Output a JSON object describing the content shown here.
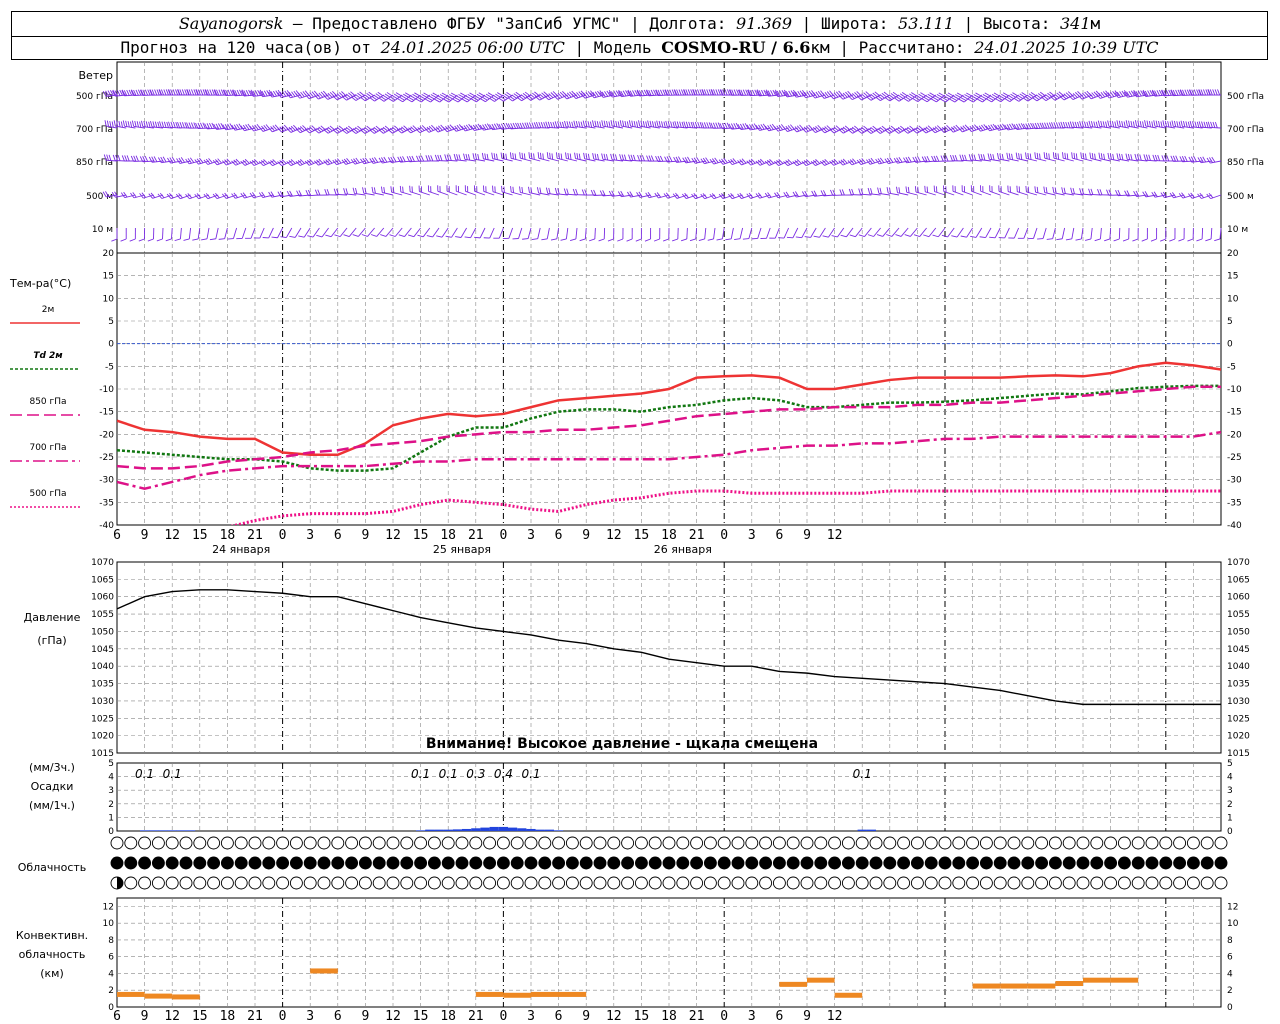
{
  "header": {
    "station": "Sayanogorsk",
    "provider": "Предоставлено ФГБУ \"ЗапСиб УГМС\"",
    "lon_label": "Долгота:",
    "lon": "91.369",
    "lat_label": "Широта:",
    "lat": "53.111",
    "alt_label": "Высота:",
    "alt": "341",
    "alt_unit": "м",
    "forecast_label": "Прогноз на 120 часа(ов) от",
    "forecast_start": "24.01.2025 06:00 UTC",
    "model_label": "Модель",
    "model": "COSMO-RU / 6.6",
    "model_unit": "км",
    "calc_label": "Рассчитано:",
    "calc_time": "24.01.2025 10:39 UTC"
  },
  "colors": {
    "t2m": "#ee3333",
    "td2m": "#117711",
    "t850": "#dd1188",
    "t700": "#dd1188",
    "t500": "#ee1188",
    "wind": "#7a2be2",
    "precip": "#2244dd",
    "conv": "#ee8822",
    "zero_line": "#3355cc",
    "grid": "#888888"
  },
  "x_axis": {
    "hours": [
      6,
      9,
      12,
      15,
      18,
      21,
      0,
      3,
      6,
      9,
      12,
      15,
      18,
      21,
      0,
      3,
      6,
      9,
      12,
      15,
      18,
      21,
      0,
      3,
      6,
      9,
      12
    ],
    "dates": [
      "24 января",
      "25 января",
      "26 января"
    ]
  },
  "wind_panel": {
    "title": "Ветер",
    "levels": [
      "500 гПа",
      "700 гПа",
      "850 гПа",
      "500 м",
      "10  м"
    ]
  },
  "temp_panel": {
    "title": "Тем-ра(°С)",
    "legend": [
      "2м",
      "Td  2м",
      "850 гПа",
      "700 гПа",
      "500 гПа"
    ],
    "yticks": [
      20,
      15,
      10,
      5,
      0,
      -5,
      -10,
      -15,
      -20,
      -25,
      -30,
      -35,
      -40
    ]
  },
  "pressure_panel": {
    "title": "Давление",
    "unit": "(гПа)",
    "warning": "Внимание! Высокое давление - щкала смещена",
    "yticks": [
      1070,
      1065,
      1060,
      1055,
      1050,
      1045,
      1040,
      1035,
      1030,
      1025,
      1020,
      1015
    ]
  },
  "precip_panel": {
    "unit3": "(мм/3ч.)",
    "title": "Осадки",
    "unit1": "(мм/1ч.)",
    "yticks": [
      5,
      4,
      3,
      2,
      1,
      0
    ],
    "labels": [
      {
        "hour": 9,
        "text": "0.1"
      },
      {
        "hour": 12,
        "text": "0.1"
      },
      {
        "hour": 39,
        "text": "0.1"
      },
      {
        "hour": 42,
        "text": "0.1"
      },
      {
        "hour": 45,
        "text": "0.3"
      },
      {
        "hour": 48,
        "text": "0.4"
      },
      {
        "hour": 51,
        "text": "0.1"
      },
      {
        "hour": 87,
        "text": "0.1"
      }
    ]
  },
  "cloud_panel": {
    "title": "Облачность"
  },
  "conv_panel": {
    "title1": "Конвективн.",
    "title2": "облачность",
    "unit": "(км)",
    "yticks": [
      12,
      10,
      8,
      6,
      4,
      2,
      0
    ]
  },
  "chart_data": [
    {
      "type": "line",
      "title": "Тем-ра(°С)",
      "x_unit": "hours since 24.01.2025 00 UTC",
      "ylim": [
        -40,
        20
      ],
      "series": [
        {
          "name": "2м",
          "x": [
            6,
            9,
            12,
            15,
            18,
            21,
            24,
            27,
            30,
            33,
            36,
            39,
            42,
            45,
            48,
            51,
            54,
            57,
            60,
            63,
            66,
            69,
            72,
            75,
            78,
            81,
            84,
            87,
            90,
            93,
            96,
            99,
            102,
            105,
            108,
            111,
            114,
            117,
            120,
            123,
            126
          ],
          "values": [
            -17,
            -19,
            -19.5,
            -20.5,
            -21,
            -21,
            -24,
            -24.5,
            -24.5,
            -22,
            -18,
            -16.5,
            -15.5,
            -16,
            -15.5,
            -14,
            -12.5,
            -12,
            -11.5,
            -11,
            -10,
            -7.5,
            -7.2,
            -7,
            -7.5,
            -10,
            -10,
            -9,
            -8,
            -7.5,
            -7.5,
            -7.5,
            -7.5,
            -7.2,
            -7,
            -7.2,
            -6.5,
            -5,
            -4.2,
            -4.8,
            -5.7
          ]
        },
        {
          "name": "Td  2м",
          "x": [
            6,
            9,
            12,
            15,
            18,
            21,
            24,
            27,
            30,
            33,
            36,
            39,
            42,
            45,
            48,
            51,
            54,
            57,
            60,
            63,
            66,
            69,
            72,
            75,
            78,
            81,
            84,
            87,
            90,
            93,
            96,
            99,
            102,
            105,
            108,
            111,
            114,
            117,
            120,
            123,
            126
          ],
          "values": [
            -23.5,
            -24,
            -24.5,
            -25,
            -25.5,
            -25.5,
            -26,
            -27.5,
            -28,
            -28,
            -27.5,
            -24,
            -20.5,
            -18.5,
            -18.5,
            -16.5,
            -15,
            -14.5,
            -14.5,
            -15,
            -14,
            -13.5,
            -12.5,
            -12,
            -12.5,
            -14,
            -14,
            -13.5,
            -13,
            -13,
            -12.8,
            -12.5,
            -12,
            -11.5,
            -11,
            -11.2,
            -10.5,
            -9.8,
            -9.5,
            -9.3,
            -9.3
          ]
        },
        {
          "name": "850 гПа",
          "x": [
            6,
            9,
            12,
            15,
            18,
            21,
            24,
            27,
            30,
            33,
            36,
            39,
            42,
            45,
            48,
            51,
            54,
            57,
            60,
            63,
            66,
            69,
            72,
            75,
            78,
            81,
            84,
            87,
            90,
            93,
            96,
            99,
            102,
            105,
            108,
            111,
            114,
            117,
            120,
            123,
            126
          ],
          "values": [
            -27,
            -27.5,
            -27.5,
            -27,
            -26,
            -25.5,
            -25,
            -24,
            -23.5,
            -22.5,
            -22,
            -21.5,
            -20.5,
            -20,
            -19.5,
            -19.5,
            -19,
            -19,
            -18.5,
            -18,
            -17,
            -16,
            -15.5,
            -15,
            -14.5,
            -14.5,
            -14,
            -14,
            -14,
            -13.5,
            -13.5,
            -13,
            -13,
            -12.5,
            -12,
            -11.5,
            -11,
            -10.5,
            -10,
            -9.5,
            -9.5
          ]
        },
        {
          "name": "700 гПа",
          "x": [
            6,
            9,
            12,
            15,
            18,
            21,
            24,
            27,
            30,
            33,
            36,
            39,
            42,
            45,
            48,
            51,
            54,
            57,
            60,
            63,
            66,
            69,
            72,
            75,
            78,
            81,
            84,
            87,
            90,
            93,
            96,
            99,
            102,
            105,
            108,
            111,
            114,
            117,
            120,
            123,
            126
          ],
          "values": [
            -30.5,
            -32,
            -30.5,
            -29,
            -28,
            -27.5,
            -27,
            -27,
            -27,
            -27,
            -26.5,
            -26,
            -26,
            -25.5,
            -25.5,
            -25.5,
            -25.5,
            -25.5,
            -25.5,
            -25.5,
            -25.5,
            -25,
            -24.5,
            -23.5,
            -23,
            -22.5,
            -22.5,
            -22,
            -22,
            -21.5,
            -21,
            -21,
            -20.5,
            -20.5,
            -20.5,
            -20.5,
            -20.5,
            -20.5,
            -20.5,
            -20.5,
            -19.5
          ]
        },
        {
          "name": "500 гПа",
          "x": [
            18,
            21,
            24,
            27,
            30,
            33,
            36,
            39,
            42,
            45,
            48,
            51,
            54,
            57,
            60,
            63,
            66,
            69,
            72,
            75,
            78,
            81,
            84,
            87,
            90,
            93,
            96,
            99,
            102,
            105,
            108,
            111,
            114,
            117,
            120,
            123,
            126
          ],
          "values": [
            -40.5,
            -39,
            -38,
            -37.5,
            -37.5,
            -37.5,
            -37,
            -35.5,
            -34.5,
            -35,
            -35.5,
            -36.5,
            -37,
            -35.5,
            -34.5,
            -34,
            -33,
            -32.5,
            -32.5,
            -33,
            -33,
            -33,
            -33,
            -33,
            -32.5,
            -32.5,
            -32.5,
            -32.5,
            -32.5,
            -32.5,
            -32.5,
            -32.5,
            -32.5,
            -32.5,
            -32.5,
            -32.5,
            -32.5
          ]
        }
      ]
    },
    {
      "type": "line",
      "title": "Давление",
      "ylabel": "(гПа)",
      "ylim": [
        1015,
        1070
      ],
      "series": [
        {
          "x": [
            6,
            9,
            12,
            15,
            18,
            21,
            24,
            27,
            30,
            33,
            36,
            39,
            42,
            45,
            48,
            51,
            54,
            57,
            60,
            63,
            66,
            69,
            72,
            75,
            78,
            81,
            84,
            87,
            90,
            93,
            96,
            99,
            102,
            105,
            108,
            111,
            114,
            117,
            120,
            123,
            126
          ],
          "values": [
            1056.5,
            1060,
            1061.5,
            1062,
            1062,
            1061.5,
            1061,
            1060,
            1060,
            1058,
            1056,
            1054,
            1052.5,
            1051,
            1050,
            1049,
            1047.5,
            1046.5,
            1045,
            1044,
            1042,
            1041,
            1040,
            1040,
            1038.5,
            1038,
            1037,
            1036.5,
            1036,
            1035.5,
            1035,
            1034,
            1033,
            1031.5,
            1030,
            1029,
            1029,
            1029,
            1029,
            1029,
            1029
          ]
        }
      ]
    },
    {
      "type": "bar",
      "title": "Осадки",
      "ylabel": "(мм/1ч.)",
      "ylim": [
        0,
        5
      ],
      "series": [
        {
          "x": [
            9,
            10,
            11,
            12,
            13,
            14,
            39,
            40,
            41,
            42,
            43,
            44,
            45,
            46,
            47,
            48,
            49,
            50,
            51,
            52,
            53,
            54,
            87,
            88
          ],
          "values": [
            0.05,
            0.05,
            0.05,
            0.05,
            0.05,
            0.05,
            0.05,
            0.1,
            0.1,
            0.1,
            0.12,
            0.15,
            0.2,
            0.25,
            0.3,
            0.3,
            0.25,
            0.2,
            0.15,
            0.1,
            0.1,
            0.05,
            0.1,
            0.1
          ]
        }
      ]
    },
    {
      "type": "bar",
      "title": "Конвективн. облачность",
      "ylabel": "(км)",
      "ylim": [
        0,
        13
      ],
      "series": [
        {
          "segments": [
            [
              6,
              9,
              1.5
            ],
            [
              9,
              12,
              1.3
            ],
            [
              12,
              15,
              1.2
            ],
            [
              27,
              30,
              4.3
            ],
            [
              45,
              48,
              1.5
            ],
            [
              48,
              51,
              1.4
            ],
            [
              51,
              57,
              1.5
            ],
            [
              78,
              81,
              2.7
            ],
            [
              81,
              84,
              3.2
            ],
            [
              84,
              87,
              1.4
            ],
            [
              99,
              102,
              2.5
            ],
            [
              102,
              105,
              2.5
            ],
            [
              105,
              108,
              2.5
            ],
            [
              108,
              111,
              2.8
            ],
            [
              111,
              114,
              3.2
            ],
            [
              114,
              117,
              3.2
            ]
          ]
        }
      ]
    },
    {
      "type": "table",
      "title": "Облачность",
      "rows": [
        {
          "name": "upper",
          "values": "00000000000000000000000000000000000000000000000000000000000000000000000000000000000000000000000000000000000000000000000000000000000000000000000000000000000000000000000000000000000000000000000000000000000000000000000000000000000000000000000000000000000000000000000"
        },
        {
          "name": "middle",
          "values": "44444444444444444444444444444444444444444444444444444444444444444444444444444444444444444444444444444444444444444444444444444444444444444444444444444444444444444444444444444444444444444444444444444444444444444444444444444444444444444444444444444444444444444444444"
        },
        {
          "name": "lower",
          "values": "20000000000000000000000000000000000000000000000000000000000000000000000000000000000000000000000000000000000000000000000000000000000000000000000000000000000000000000000000000000000000000000000000000000000000000000000000000000000000000000000000000000000000000000000"
        }
      ]
    },
    {
      "type": "scatter",
      "title": "Ветер",
      "levels": [
        "500 гПа",
        "700 гПа",
        "850 гПа",
        "500 м",
        "10  м"
      ],
      "series": [
        {
          "name": "500 гПа",
          "direction_deg": 250,
          "speed_ms": 25
        },
        {
          "name": "700 гПа",
          "direction_deg": 260,
          "speed_ms": 18
        },
        {
          "name": "850 гПа",
          "direction_deg": 265,
          "speed_ms": 14
        },
        {
          "name": "500 м",
          "direction_deg": 270,
          "speed_ms": 8
        },
        {
          "name": "10  м",
          "direction_deg": 200,
          "speed_ms": 3
        }
      ]
    }
  ]
}
